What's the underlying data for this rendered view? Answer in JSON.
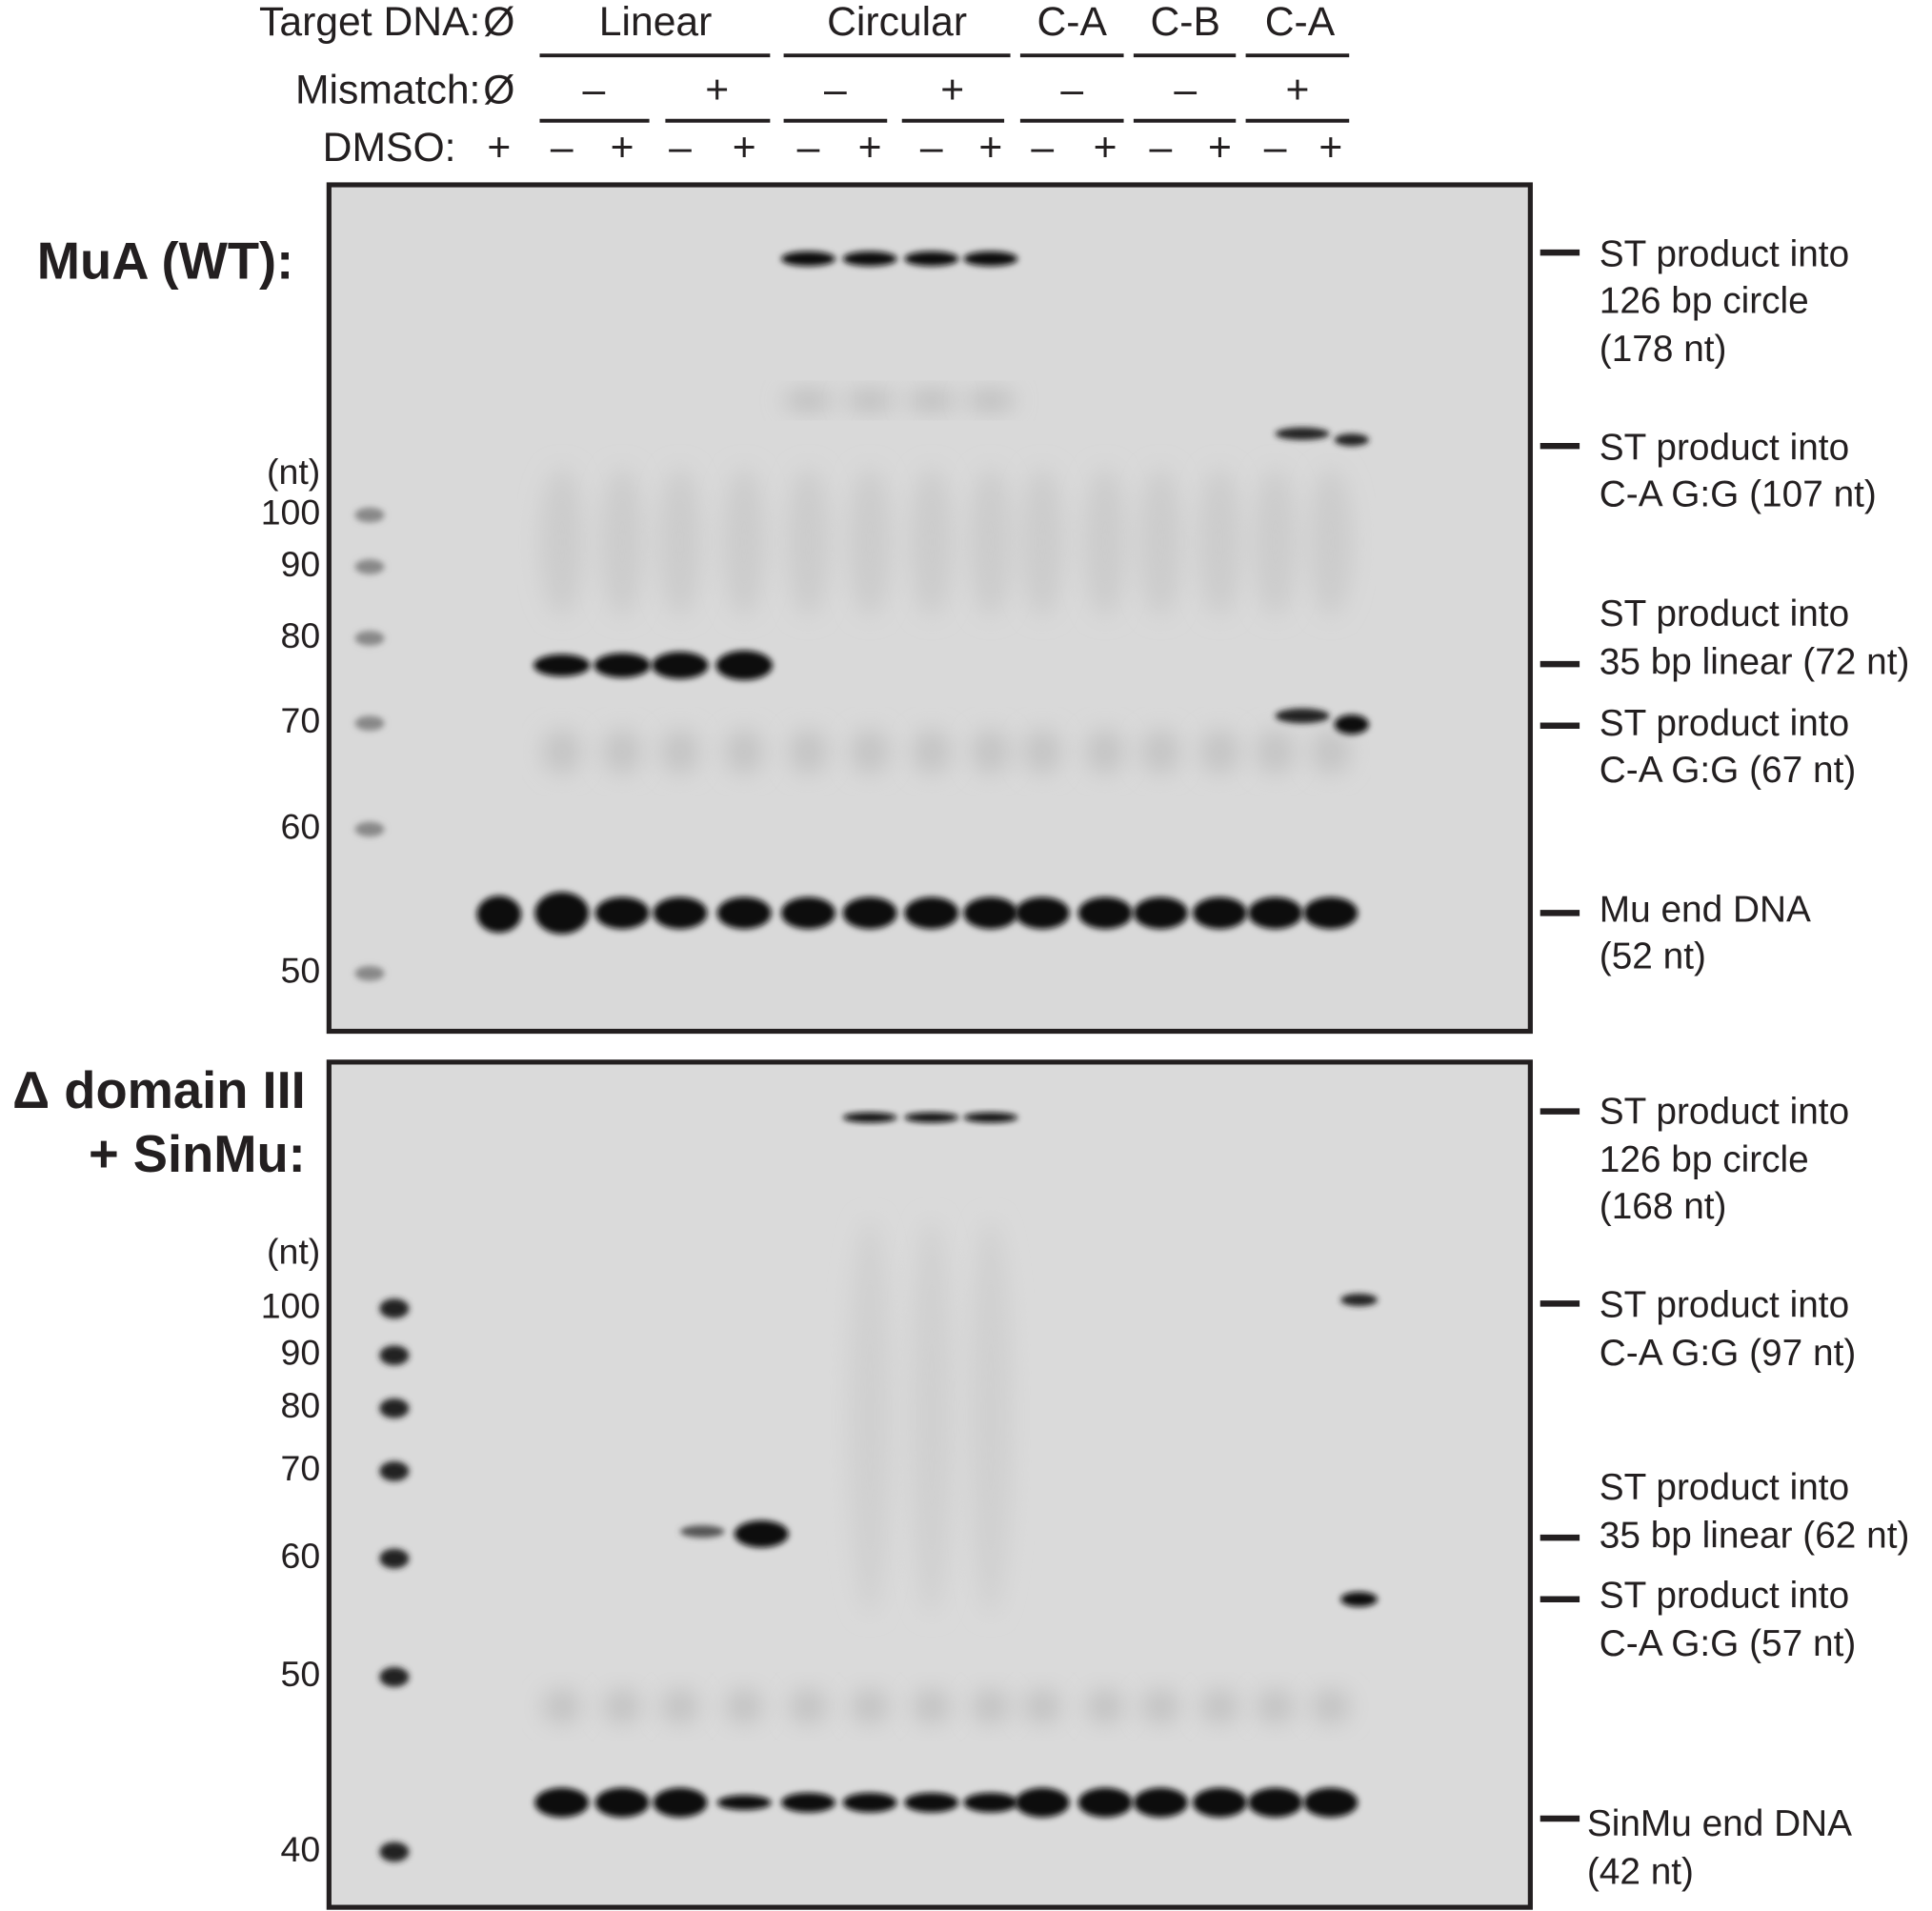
{
  "header": {
    "target_label": "Target DNA:",
    "mismatch_label": "Mismatch:",
    "dmso_label": "DMSO:",
    "target": [
      "Ø",
      "Linear",
      "Circular",
      "C-A",
      "C-B",
      "C-A"
    ],
    "mismatch": [
      "Ø",
      "–",
      "+",
      "–",
      "+",
      "–",
      "–",
      "+"
    ],
    "dmso": [
      "+",
      "–",
      "+",
      "–",
      "+",
      "–",
      "+",
      "–",
      "+",
      "–",
      "+",
      "–",
      "+",
      "–",
      "+"
    ]
  },
  "panels": [
    {
      "title": [
        "MuA (WT):"
      ],
      "unit": "(nt)",
      "markers": [
        "100",
        "90",
        "80",
        "70",
        "60",
        "50"
      ],
      "annotations": [
        [
          "ST product into",
          "126 bp circle",
          "(178 nt)"
        ],
        [
          "ST product into",
          "C-A G:G (107 nt)"
        ],
        [
          "ST product into",
          "35 bp linear (72 nt)"
        ],
        [
          "ST product into",
          "C-A G:G (67 nt)"
        ],
        [
          "Mu end DNA",
          "(52 nt)"
        ]
      ]
    },
    {
      "title": [
        "Δ domain III",
        "+ SinMu:"
      ],
      "unit": "(nt)",
      "markers": [
        "100",
        "90",
        "80",
        "70",
        "60",
        "50",
        "40"
      ],
      "annotations": [
        [
          "ST product into",
          "126 bp circle",
          "(168 nt)"
        ],
        [
          "ST product into",
          "C-A G:G (97 nt)"
        ],
        [
          "ST product into",
          "35 bp linear (62 nt)"
        ],
        [
          "ST product into",
          "C-A G:G (57 nt)"
        ],
        [
          "SinMu end DNA",
          "(42 nt)"
        ]
      ]
    }
  ]
}
